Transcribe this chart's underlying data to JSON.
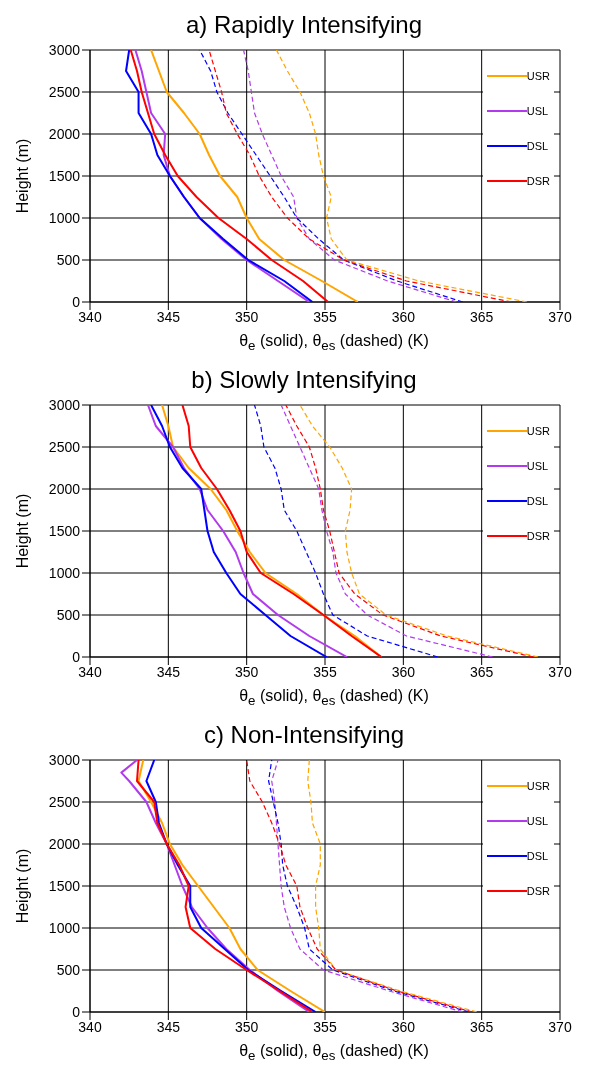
{
  "chart_data": [
    {
      "type": "line",
      "title": "a)  Rapidly Intensifying",
      "xlabel": "θ$_{e}$ (solid), θ$_{es}$ (dashed) (K)",
      "ylabel": "Height (m)",
      "xlim": [
        340,
        370
      ],
      "xticks": [
        340,
        345,
        350,
        355,
        360,
        365,
        370
      ],
      "ylim": [
        0,
        3000
      ],
      "yticks": [
        0,
        500,
        1000,
        1500,
        2000,
        2500,
        3000
      ],
      "grid": true,
      "legend": "top right",
      "series": [
        {
          "name": "USR",
          "color": "#ffa500",
          "line_style": "solid",
          "x": [
            357.1,
            354.8,
            352.4,
            350.8,
            350.0,
            349.4,
            348.3,
            347.6,
            347.0,
            346.0,
            344.9,
            344.4,
            343.9
          ],
          "values": [
            0,
            250,
            500,
            750,
            1000,
            1250,
            1500,
            1750,
            2000,
            2250,
            2500,
            2750,
            3000
          ]
        },
        {
          "name": "USL",
          "color": "#b23aee",
          "line_style": "solid",
          "x": [
            354.0,
            352.0,
            350.0,
            348.4,
            347.0,
            346.0,
            345.1,
            344.7,
            344.8,
            343.9,
            343.6,
            343.3,
            342.9
          ],
          "values": [
            0,
            250,
            500,
            750,
            1000,
            1250,
            1500,
            1750,
            2000,
            2250,
            2500,
            2750,
            3000
          ]
        },
        {
          "name": "DSL",
          "color": "#0000ff",
          "line_style": "solid",
          "x": [
            354.2,
            352.4,
            350.1,
            348.5,
            347.0,
            346.0,
            345.1,
            344.3,
            343.9,
            343.1,
            343.1,
            342.3,
            342.5
          ],
          "values": [
            0,
            250,
            500,
            750,
            1000,
            1250,
            1500,
            1750,
            2000,
            2250,
            2500,
            2750,
            3000
          ]
        },
        {
          "name": "DSR",
          "color": "#ff0000",
          "line_style": "solid",
          "x": [
            355.2,
            353.6,
            351.6,
            350.0,
            348.2,
            346.8,
            345.6,
            344.8,
            344.1,
            343.7,
            343.3,
            343.0,
            342.6
          ],
          "values": [
            0,
            250,
            500,
            750,
            1000,
            1250,
            1500,
            1750,
            2000,
            2250,
            2500,
            2750,
            3000
          ]
        },
        {
          "color": "#ffa500",
          "line_style": "dashed",
          "x": [
            367.9,
            361.0,
            356.4,
            355.4,
            355.1,
            355.4,
            354.9,
            354.6,
            354.4,
            354.0,
            353.4,
            352.6,
            351.9
          ],
          "values": [
            0,
            250,
            500,
            750,
            1000,
            1250,
            1500,
            1750,
            2000,
            2250,
            2500,
            2750,
            3000
          ]
        },
        {
          "color": "#b23aee",
          "line_style": "dashed",
          "x": [
            363.4,
            359.0,
            355.6,
            354.0,
            353.2,
            353.0,
            352.2,
            351.6,
            351.0,
            350.5,
            350.3,
            350.1,
            349.8
          ],
          "values": [
            0,
            250,
            500,
            750,
            1000,
            1250,
            1500,
            1750,
            2000,
            2250,
            2500,
            2750,
            3000
          ]
        },
        {
          "color": "#0000ff",
          "line_style": "dashed",
          "x": [
            363.8,
            359.6,
            356.2,
            354.6,
            353.2,
            352.4,
            351.5,
            350.6,
            349.7,
            348.8,
            348.1,
            347.7,
            347.0
          ],
          "values": [
            0,
            250,
            500,
            750,
            1000,
            1250,
            1500,
            1750,
            2000,
            2250,
            2500,
            2750,
            3000
          ]
        },
        {
          "color": "#ff0000",
          "line_style": "dashed",
          "x": [
            366.9,
            360.2,
            356.2,
            354.0,
            352.6,
            351.6,
            350.8,
            350.2,
            349.4,
            348.7,
            348.4,
            348.0,
            347.6
          ],
          "values": [
            0,
            250,
            500,
            750,
            1000,
            1250,
            1500,
            1750,
            2000,
            2250,
            2500,
            2750,
            3000
          ]
        }
      ]
    },
    {
      "type": "line",
      "title": "b)  Slowly Intensifying",
      "xlabel": "θ$_{e}$ (solid), θ$_{es}$ (dashed) (K)",
      "ylabel": "Height (m)",
      "xlim": [
        340,
        370
      ],
      "xticks": [
        340,
        345,
        350,
        355,
        360,
        365,
        370
      ],
      "ylim": [
        0,
        3000
      ],
      "yticks": [
        0,
        500,
        1000,
        1500,
        2000,
        2500,
        3000
      ],
      "grid": true,
      "legend": "top right",
      "series": [
        {
          "name": "USR",
          "color": "#ffa500",
          "line_style": "solid",
          "x": [
            358.6,
            356.9,
            354.9,
            353.2,
            351.2,
            350.2,
            349.4,
            348.7,
            347.7,
            346.3,
            345.3,
            345.0,
            344.6
          ],
          "values": [
            0,
            250,
            500,
            750,
            1000,
            1250,
            1500,
            1750,
            2000,
            2250,
            2500,
            2750,
            3000
          ]
        },
        {
          "name": "USL",
          "color": "#b23aee",
          "line_style": "solid",
          "x": [
            356.4,
            354.0,
            352.0,
            350.4,
            349.8,
            349.3,
            348.5,
            347.5,
            347.0,
            346.0,
            345.3,
            344.2,
            343.7
          ],
          "values": [
            0,
            250,
            500,
            750,
            1000,
            1250,
            1500,
            1750,
            2000,
            2250,
            2500,
            2750,
            3000
          ]
        },
        {
          "name": "DSL",
          "color": "#0000ff",
          "line_style": "solid",
          "x": [
            355.1,
            352.8,
            351.2,
            349.6,
            348.7,
            347.9,
            347.5,
            347.3,
            347.1,
            345.9,
            345.1,
            344.6,
            343.9
          ],
          "values": [
            0,
            250,
            500,
            750,
            1000,
            1250,
            1500,
            1750,
            2000,
            2250,
            2500,
            2750,
            3000
          ]
        },
        {
          "name": "DSR",
          "color": "#ff0000",
          "line_style": "solid",
          "x": [
            358.6,
            356.7,
            354.9,
            353.0,
            350.9,
            350.0,
            349.6,
            348.9,
            348.1,
            347.1,
            346.4,
            346.3,
            345.9
          ],
          "values": [
            0,
            250,
            500,
            750,
            1000,
            1250,
            1500,
            1750,
            2000,
            2250,
            2500,
            2750,
            3000
          ]
        },
        {
          "color": "#ffa500",
          "line_style": "dashed",
          "x": [
            368.6,
            362.8,
            358.9,
            357.2,
            356.7,
            356.4,
            356.3,
            356.6,
            356.7,
            356.1,
            355.3,
            354.2,
            353.4
          ],
          "values": [
            0,
            250,
            500,
            750,
            1000,
            1250,
            1500,
            1750,
            2000,
            2250,
            2500,
            2750,
            3000
          ]
        },
        {
          "color": "#b23aee",
          "line_style": "dashed",
          "x": [
            365.7,
            360.2,
            357.7,
            356.3,
            355.7,
            355.5,
            355.1,
            354.8,
            354.6,
            354.0,
            353.4,
            352.8,
            352.2
          ],
          "values": [
            0,
            250,
            500,
            750,
            1000,
            1250,
            1500,
            1750,
            2000,
            2250,
            2500,
            2750,
            3000
          ]
        },
        {
          "color": "#0000ff",
          "line_style": "dashed",
          "x": [
            362.2,
            357.7,
            355.5,
            354.9,
            354.4,
            353.8,
            353.2,
            352.4,
            352.2,
            351.8,
            351.1,
            350.9,
            350.5
          ],
          "values": [
            0,
            250,
            500,
            750,
            1000,
            1250,
            1500,
            1750,
            2000,
            2250,
            2500,
            2750,
            3000
          ]
        },
        {
          "color": "#ff0000",
          "line_style": "dashed",
          "x": [
            368.3,
            362.4,
            358.7,
            356.9,
            355.9,
            355.6,
            355.3,
            354.9,
            354.7,
            354.4,
            354.0,
            353.2,
            352.5
          ],
          "values": [
            0,
            250,
            500,
            750,
            1000,
            1250,
            1500,
            1750,
            2000,
            2250,
            2500,
            2750,
            3000
          ]
        }
      ]
    },
    {
      "type": "line",
      "title": "c)  Non-Intensifying",
      "xlabel": "θ$_{e}$ (solid), θ$_{es}$ (dashed) (K)",
      "ylabel": "Height (m)",
      "xlim": [
        340,
        370
      ],
      "xticks": [
        340,
        345,
        350,
        355,
        360,
        365,
        370
      ],
      "ylim": [
        0,
        3000
      ],
      "yticks": [
        0,
        500,
        1000,
        1500,
        2000,
        2500,
        3000
      ],
      "grid": true,
      "legend": "top right",
      "series": [
        {
          "name": "USR",
          "color": "#ffa500",
          "line_style": "solid",
          "x": [
            355.0,
            352.8,
            350.7,
            349.6,
            348.9,
            347.9,
            346.9,
            345.9,
            345.1,
            344.6,
            343.9,
            343.1,
            343.4
          ],
          "values": [
            0,
            250,
            500,
            750,
            1000,
            1250,
            1500,
            1750,
            2000,
            2250,
            2500,
            2750,
            3000
          ]
        },
        {
          "name": "USL",
          "color": "#b23aee",
          "line_style": "solid",
          "x": [
            354.0,
            352.0,
            350.2,
            348.7,
            347.5,
            346.5,
            345.9,
            345.4,
            344.9,
            344.2,
            343.6,
            342.5,
            342.0,
            343.0
          ],
          "values": [
            0,
            250,
            500,
            750,
            1000,
            1250,
            1500,
            1750,
            2000,
            2250,
            2500,
            2750,
            2850,
            3000
          ]
        },
        {
          "name": "DSL",
          "color": "#0000ff",
          "line_style": "solid",
          "x": [
            354.4,
            352.2,
            350.1,
            348.6,
            347.1,
            346.4,
            346.4,
            345.6,
            344.9,
            344.4,
            344.2,
            343.6,
            344.1
          ],
          "values": [
            0,
            250,
            500,
            750,
            1000,
            1250,
            1500,
            1750,
            2000,
            2250,
            2500,
            2750,
            3000
          ]
        },
        {
          "name": "DSR",
          "color": "#ff0000",
          "line_style": "solid",
          "x": [
            354.2,
            352.1,
            350.0,
            348.0,
            346.4,
            346.1,
            346.3,
            345.7,
            344.9,
            344.3,
            344.1,
            343.0,
            343.1
          ],
          "values": [
            0,
            250,
            500,
            750,
            1000,
            1250,
            1500,
            1750,
            2000,
            2250,
            2500,
            2750,
            3000
          ]
        },
        {
          "color": "#ffa500",
          "line_style": "dashed",
          "x": [
            364.7,
            359.8,
            355.7,
            354.7,
            354.6,
            354.4,
            354.4,
            354.7,
            354.7,
            354.2,
            354.1,
            353.9,
            354.0
          ],
          "values": [
            0,
            250,
            500,
            750,
            1000,
            1250,
            1500,
            1750,
            2000,
            2250,
            2500,
            2750,
            3000
          ]
        },
        {
          "color": "#b23aee",
          "line_style": "dashed",
          "x": [
            363.8,
            359.1,
            354.9,
            353.4,
            352.8,
            352.4,
            352.2,
            352.1,
            352.0,
            351.9,
            351.8,
            351.6,
            352.0
          ],
          "values": [
            0,
            250,
            500,
            750,
            1000,
            1250,
            1500,
            1750,
            2000,
            2250,
            2500,
            2750,
            3000
          ]
        },
        {
          "color": "#0000ff",
          "line_style": "dashed",
          "x": [
            364.2,
            359.4,
            355.5,
            354.0,
            353.7,
            353.2,
            352.6,
            352.3,
            352.2,
            352.0,
            351.7,
            351.4,
            351.6
          ],
          "values": [
            0,
            250,
            500,
            750,
            1000,
            1250,
            1500,
            1750,
            2000,
            2250,
            2500,
            2750,
            3000
          ]
        },
        {
          "color": "#ff0000",
          "line_style": "dashed",
          "x": [
            364.4,
            359.6,
            355.7,
            354.5,
            353.9,
            353.4,
            353.2,
            352.5,
            352.1,
            351.6,
            351.0,
            350.2,
            350.0
          ],
          "values": [
            0,
            250,
            500,
            750,
            1000,
            1250,
            1500,
            1750,
            2000,
            2250,
            2500,
            2750,
            3000
          ]
        }
      ]
    }
  ]
}
